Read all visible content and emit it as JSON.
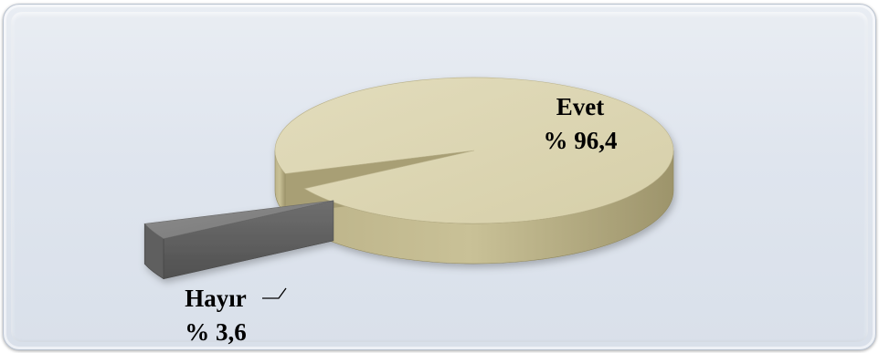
{
  "chart_data": {
    "type": "pie",
    "title": "",
    "slices": [
      {
        "label": "Evet",
        "value": 96.4,
        "display_value": "% 96,4",
        "color": "#d8d2b0"
      },
      {
        "label": "Hayır",
        "value": 3.6,
        "display_value": "% 3,6",
        "color": "#8c8c8c"
      }
    ],
    "exploded_slice": "Hayır",
    "style": "3d-exploded",
    "legend": "none"
  }
}
